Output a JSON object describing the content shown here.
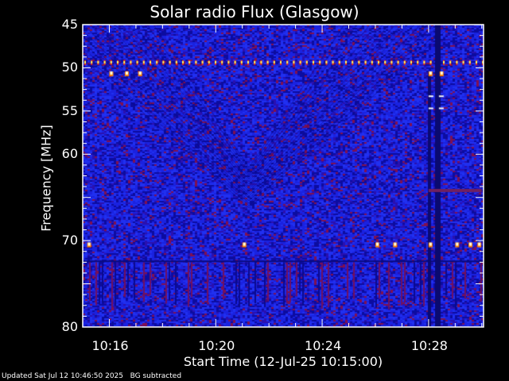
{
  "chart_data": {
    "type": "heatmap",
    "title": "Solar radio Flux (Glasgow)",
    "xlabel": "Start Time (12-Jul-25 10:15:00)",
    "ylabel": "Frequency [MHz]",
    "xlim": [
      "10:15:00",
      "10:30:04"
    ],
    "ylim": [
      45,
      80
    ],
    "y_inverted": true,
    "x_ticks": [
      "10:16",
      "10:20",
      "10:24",
      "10:28"
    ],
    "y_ticks": [
      45,
      50,
      55,
      60,
      70,
      80
    ],
    "colormap": [
      "#000060",
      "#1020e0",
      "#a01040",
      "#ff2000",
      "#ffff00",
      "#ffffff"
    ],
    "features": [
      {
        "kind": "comb-line",
        "freq_mhz": 49.4,
        "from": "10:15:00",
        "to": "10:30:00"
      },
      {
        "kind": "v-shape-interference",
        "center_time": "10:21:15"
      },
      {
        "kind": "dark-vertical-band",
        "time": "10:28:20"
      },
      {
        "kind": "horizontal-band",
        "freq_mhz": 64.2,
        "from": "10:28:00",
        "to": "10:30:00"
      },
      {
        "kind": "bright-dots",
        "freq_mhz": 70.5,
        "times": [
          "10:15:10",
          "10:21:00",
          "10:26:00",
          "10:26:40",
          "10:28:00",
          "10:29:00",
          "10:29:30",
          "10:29:50"
        ]
      },
      {
        "kind": "bright-dots",
        "freq_mhz": 50.7,
        "times": [
          "10:16:00",
          "10:16:35",
          "10:17:05",
          "10:28:00",
          "10:28:25"
        ]
      }
    ]
  },
  "footer": {
    "updated": "Updated Sat Jul 12 10:46:50 2025",
    "note": "BG subtracted"
  }
}
